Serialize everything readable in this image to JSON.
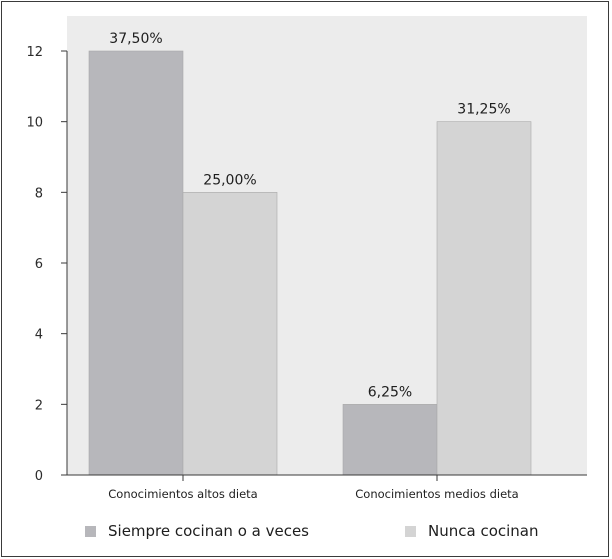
{
  "chart_data": {
    "type": "bar",
    "categories": [
      "Conocimientos altos dieta",
      "Conocimientos medios dieta"
    ],
    "series": [
      {
        "name": "Siempre cocinan o a veces",
        "values": [
          12,
          2
        ],
        "labels": [
          "37,50%",
          "6,25%"
        ],
        "color": "#b7b7bb"
      },
      {
        "name": "Nunca cocinan",
        "values": [
          8,
          10
        ],
        "labels": [
          "25,00%",
          "31,25%"
        ],
        "color": "#d4d4d4"
      }
    ],
    "ylim": [
      0,
      12
    ],
    "yticks": [
      0,
      2,
      4,
      6,
      8,
      10,
      12
    ],
    "plot_background": "#ececec",
    "legend_position": "bottom",
    "grid": false
  }
}
